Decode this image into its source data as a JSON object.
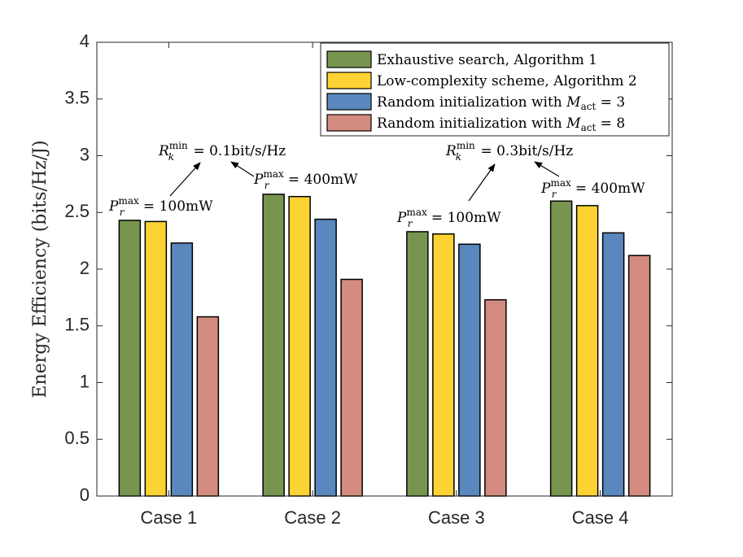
{
  "chart_data": {
    "type": "bar",
    "ylabel": "Energy Efficiency (bits/Hz/J)",
    "ylim": [
      0,
      4
    ],
    "yticks": [
      "0",
      "0.5",
      "1",
      "1.5",
      "2",
      "2.5",
      "3",
      "3.5",
      "4"
    ],
    "categories": [
      "Case 1",
      "Case 2",
      "Case 3",
      "Case 4"
    ],
    "series": [
      {
        "name": "Exhaustive search, Algorithm 1",
        "values": [
          2.43,
          2.66,
          2.33,
          2.6
        ],
        "color": "#789550"
      },
      {
        "name": "Low-complexity scheme, Algorithm 2",
        "values": [
          2.42,
          2.64,
          2.31,
          2.56
        ],
        "color": "#fdd333"
      },
      {
        "name": "Random initialization with M_act = 3",
        "values": [
          2.23,
          2.44,
          2.22,
          2.32
        ],
        "color": "#5a87bd"
      },
      {
        "name": "Random initialization with M_act = 8",
        "values": [
          1.58,
          1.91,
          1.73,
          2.12
        ],
        "color": "#d48b7f"
      }
    ],
    "legend": {
      "placement": "top-right",
      "entries": [
        {
          "prefix": "Exhaustive search, Algorithm 1"
        },
        {
          "prefix": "Low-complexity scheme, Algorithm 2"
        },
        {
          "prefix": "Random initialization with ",
          "var": "M",
          "sub": "act",
          "suffix": " = 3"
        },
        {
          "prefix": "Random initialization with ",
          "var": "M",
          "sub": "act",
          "suffix": " = 8"
        }
      ]
    },
    "grid": false,
    "annotations": {
      "r1": {
        "var": "R",
        "sub": "k",
        "sup": "min",
        "text": " = 0.1bit/s/Hz"
      },
      "p1": {
        "var": "P",
        "sub": "r",
        "sup": "max",
        "text": " = 100mW"
      },
      "p2": {
        "var": "P",
        "sub": "r",
        "sup": "max",
        "text": " = 400mW"
      },
      "r2": {
        "var": "R",
        "sub": "k",
        "sup": "min",
        "text": " = 0.3bit/s/Hz"
      },
      "p3": {
        "var": "P",
        "sub": "r",
        "sup": "max",
        "text": " = 100mW"
      },
      "p4": {
        "var": "P",
        "sub": "r",
        "sup": "max",
        "text": " = 400mW"
      }
    }
  }
}
